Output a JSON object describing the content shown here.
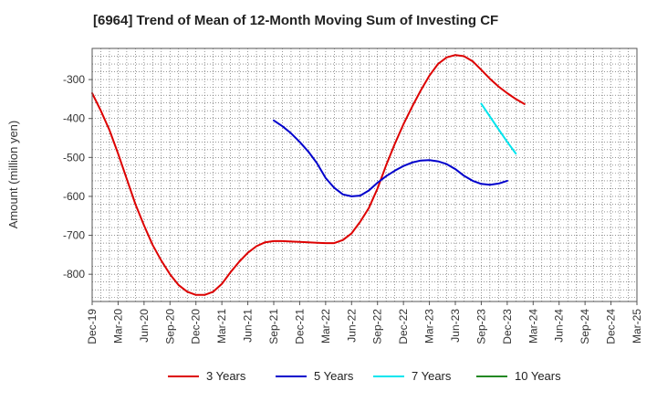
{
  "chart_data": {
    "type": "line",
    "title": "[6964]  Trend of Mean of 12-Month Moving Sum of Investing CF",
    "xlabel": "",
    "ylabel": "Amount (million yen)",
    "ylim": [
      -870,
      -220
    ],
    "yticks": [
      -800,
      -700,
      -600,
      -500,
      -400,
      -300
    ],
    "categories": [
      "Dec-19",
      "Mar-20",
      "Jun-20",
      "Sep-20",
      "Dec-20",
      "Mar-21",
      "Jun-21",
      "Sep-21",
      "Dec-21",
      "Mar-22",
      "Jun-22",
      "Sep-22",
      "Dec-22",
      "Mar-23",
      "Jun-23",
      "Sep-23",
      "Dec-23",
      "Mar-24",
      "Jun-24",
      "Sep-24",
      "Dec-24",
      "Mar-25"
    ],
    "x_months_per_category": 3,
    "grid": true,
    "legend_position": "bottom",
    "series": [
      {
        "name": "3 Years",
        "color": "#dd0000",
        "points": [
          [
            0,
            -335
          ],
          [
            1,
            -380
          ],
          [
            2,
            -430
          ],
          [
            3,
            -490
          ],
          [
            4,
            -555
          ],
          [
            5,
            -620
          ],
          [
            6,
            -675
          ],
          [
            7,
            -725
          ],
          [
            8,
            -765
          ],
          [
            9,
            -800
          ],
          [
            10,
            -828
          ],
          [
            11,
            -845
          ],
          [
            12,
            -853
          ],
          [
            13,
            -853
          ],
          [
            14,
            -845
          ],
          [
            15,
            -825
          ],
          [
            16,
            -795
          ],
          [
            17,
            -768
          ],
          [
            18,
            -745
          ],
          [
            19,
            -728
          ],
          [
            20,
            -718
          ],
          [
            21,
            -715
          ],
          [
            22,
            -715
          ],
          [
            23,
            -716
          ],
          [
            24,
            -717
          ],
          [
            25,
            -718
          ],
          [
            26,
            -719
          ],
          [
            27,
            -720
          ],
          [
            28,
            -720
          ],
          [
            29,
            -712
          ],
          [
            30,
            -695
          ],
          [
            31,
            -665
          ],
          [
            32,
            -630
          ],
          [
            33,
            -580
          ],
          [
            34,
            -520
          ],
          [
            35,
            -465
          ],
          [
            36,
            -415
          ],
          [
            37,
            -370
          ],
          [
            38,
            -328
          ],
          [
            39,
            -290
          ],
          [
            40,
            -260
          ],
          [
            41,
            -243
          ],
          [
            42,
            -237
          ],
          [
            43,
            -240
          ],
          [
            44,
            -253
          ],
          [
            45,
            -275
          ],
          [
            46,
            -298
          ],
          [
            47,
            -318
          ],
          [
            48,
            -335
          ],
          [
            49,
            -350
          ],
          [
            50,
            -363
          ]
        ]
      },
      {
        "name": "5 Years",
        "color": "#0000cc",
        "points": [
          [
            21,
            -405
          ],
          [
            22,
            -420
          ],
          [
            23,
            -438
          ],
          [
            24,
            -460
          ],
          [
            25,
            -485
          ],
          [
            26,
            -515
          ],
          [
            27,
            -553
          ],
          [
            28,
            -578
          ],
          [
            29,
            -595
          ],
          [
            30,
            -600
          ],
          [
            31,
            -598
          ],
          [
            32,
            -585
          ],
          [
            33,
            -565
          ],
          [
            34,
            -548
          ],
          [
            35,
            -534
          ],
          [
            36,
            -522
          ],
          [
            37,
            -513
          ],
          [
            38,
            -508
          ],
          [
            39,
            -507
          ],
          [
            40,
            -510
          ],
          [
            41,
            -517
          ],
          [
            42,
            -530
          ],
          [
            43,
            -547
          ],
          [
            44,
            -560
          ],
          [
            45,
            -568
          ],
          [
            46,
            -570
          ],
          [
            47,
            -567
          ],
          [
            48,
            -560
          ]
        ]
      },
      {
        "name": "7 Years",
        "color": "#00e5ee",
        "points": [
          [
            45,
            -362
          ],
          [
            46,
            -395
          ],
          [
            47,
            -428
          ],
          [
            48,
            -460
          ],
          [
            49,
            -490
          ]
        ]
      },
      {
        "name": "10 Years",
        "color": "#228822",
        "points": []
      }
    ]
  }
}
